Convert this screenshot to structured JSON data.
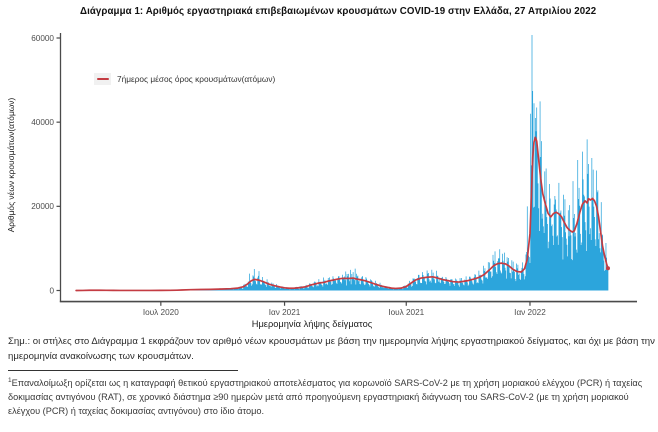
{
  "header": {
    "title": "Διάγραμμα 1: Αριθμός εργαστηριακά επιβεβαιωμένων κρουσμάτων COVID-19 στην Ελλάδα, 27 Απριλίου 2022"
  },
  "note": {
    "text": "Σημ.: οι στήλες στο Διάγραμμα 1 εκφράζουν τον αριθμό νέων κρουσμάτων με βάση την ημερομηνία λήψης εργαστηριακού δείγματος, και όχι με βάση την ημερομηνία ανακοίνωσης των κρουσμάτων."
  },
  "footnote": {
    "marker": "1",
    "text": "Επαναλοίμωξη ορίζεται ως η καταγραφή θετικού εργαστηριακού αποτελέσματος για κορωνοϊό SARS-CoV-2 με τη χρήση μοριακού ελέγχου (PCR) ή ταχείας δοκιμασίας αντιγόνου (RAT), σε χρονικό διάστημα ≥90 ημερών μετά από προηγούμενη εργαστηριακή διάγνωση του SARS-CoV-2 (με τη χρήση μοριακού ελέγχου (PCR) ή ταχείας δοκιμασίας αντιγόνου) στο ίδιο άτομο."
  },
  "chart_data": {
    "type": "bar",
    "description": "Daily laboratory-confirmed COVID-19 cases in Greece by sampling date (bars) with 7-day moving average (red line), late Feb 2020 to 27 Apr 2022",
    "legend": {
      "label": "7ήμερος μέσος όρος κρουσμάτων(ατόμων)",
      "position": "top-left"
    },
    "xlabel": "Ημερομηνία λήψης δείγματος",
    "ylabel": "Αριθμός νέων κρουσμάτων(ατόμων)",
    "grid": false,
    "ylim": [
      0,
      62000
    ],
    "y_ticks": [
      {
        "value": 0,
        "label": "0"
      },
      {
        "value": 20000,
        "label": "20000"
      },
      {
        "value": 40000,
        "label": "40000"
      },
      {
        "value": 60000,
        "label": "60000"
      }
    ],
    "x_epoch": "2020-02-01",
    "x_range_days": [
      25,
      816
    ],
    "x_ticks": [
      {
        "day": 151,
        "label": "Ιουλ 2020"
      },
      {
        "day": 335,
        "label": "Ιαν 2021"
      },
      {
        "day": 516,
        "label": "Ιουλ 2021"
      },
      {
        "day": 700,
        "label": "Ιαν 2022"
      }
    ],
    "avg_series_points": [
      [
        25,
        2
      ],
      [
        35,
        15
      ],
      [
        45,
        55
      ],
      [
        60,
        72
      ],
      [
        70,
        45
      ],
      [
        80,
        28
      ],
      [
        90,
        18
      ],
      [
        105,
        13
      ],
      [
        121,
        14
      ],
      [
        135,
        18
      ],
      [
        151,
        28
      ],
      [
        165,
        45
      ],
      [
        175,
        75
      ],
      [
        182,
        115
      ],
      [
        195,
        195
      ],
      [
        210,
        245
      ],
      [
        225,
        275
      ],
      [
        243,
        360
      ],
      [
        255,
        430
      ],
      [
        265,
        560
      ],
      [
        274,
        900
      ],
      [
        280,
        1550
      ],
      [
        285,
        2250
      ],
      [
        290,
        2650
      ],
      [
        296,
        2500
      ],
      [
        304,
        2050
      ],
      [
        312,
        1500
      ],
      [
        320,
        1150
      ],
      [
        328,
        850
      ],
      [
        335,
        640
      ],
      [
        342,
        530
      ],
      [
        350,
        570
      ],
      [
        358,
        690
      ],
      [
        366,
        870
      ],
      [
        375,
        1350
      ],
      [
        385,
        1750
      ],
      [
        394,
        1950
      ],
      [
        400,
        2250
      ],
      [
        408,
        2500
      ],
      [
        415,
        2750
      ],
      [
        422,
        2900
      ],
      [
        430,
        2870
      ],
      [
        437,
        2950
      ],
      [
        443,
        2700
      ],
      [
        450,
        2500
      ],
      [
        455,
        2300
      ],
      [
        463,
        1900
      ],
      [
        470,
        1500
      ],
      [
        478,
        1100
      ],
      [
        486,
        800
      ],
      [
        494,
        560
      ],
      [
        500,
        490
      ],
      [
        508,
        560
      ],
      [
        516,
        950
      ],
      [
        523,
        1750
      ],
      [
        530,
        2500
      ],
      [
        538,
        2950
      ],
      [
        547,
        3150
      ],
      [
        555,
        3250
      ],
      [
        562,
        3000
      ],
      [
        570,
        2600
      ],
      [
        578,
        2350
      ],
      [
        586,
        2100
      ],
      [
        594,
        2000
      ],
      [
        602,
        2200
      ],
      [
        608,
        2350
      ],
      [
        616,
        2700
      ],
      [
        624,
        3100
      ],
      [
        632,
        3800
      ],
      [
        639,
        4800
      ],
      [
        646,
        5900
      ],
      [
        652,
        6400
      ],
      [
        658,
        6500
      ],
      [
        664,
        6300
      ],
      [
        669,
        5800
      ],
      [
        675,
        5000
      ],
      [
        681,
        4500
      ],
      [
        687,
        4400
      ],
      [
        692,
        5200
      ],
      [
        696,
        7500
      ],
      [
        700,
        13500
      ],
      [
        702,
        22000
      ],
      [
        704,
        31500
      ],
      [
        706,
        35300
      ],
      [
        708,
        36400
      ],
      [
        710,
        35500
      ],
      [
        713,
        31000
      ],
      [
        716,
        26500
      ],
      [
        719,
        23000
      ],
      [
        723,
        20500
      ],
      [
        727,
        18300
      ],
      [
        731,
        17500
      ],
      [
        735,
        18300
      ],
      [
        739,
        18600
      ],
      [
        743,
        18200
      ],
      [
        747,
        17500
      ],
      [
        751,
        16200
      ],
      [
        755,
        15000
      ],
      [
        759,
        14300
      ],
      [
        763,
        13900
      ],
      [
        766,
        14200
      ],
      [
        770,
        16000
      ],
      [
        774,
        18500
      ],
      [
        778,
        20500
      ],
      [
        782,
        21300
      ],
      [
        785,
        20800
      ],
      [
        787,
        21800
      ],
      [
        790,
        21500
      ],
      [
        793,
        21900
      ],
      [
        796,
        21300
      ],
      [
        799,
        20000
      ],
      [
        802,
        17500
      ],
      [
        805,
        14000
      ],
      [
        808,
        10500
      ],
      [
        811,
        8200
      ],
      [
        814,
        6300
      ],
      [
        816,
        5300
      ]
    ],
    "bar_weekly_pattern": [
      0.55,
      1.35,
      1.15,
      1.25,
      0.95,
      0.8,
      0.65
    ],
    "bar_overrides": {
      "283": 4000,
      "290": 5100,
      "297": 4600,
      "426": 4500,
      "433": 4900,
      "440": 5200,
      "648": 9300,
      "655": 9800,
      "662": 9000,
      "696": 20000,
      "701": 42000,
      "703": 60700,
      "704": 47400,
      "706": 44500,
      "708": 41000,
      "710": 43500,
      "717": 35500,
      "724": 29000,
      "764": 26000,
      "771": 31000,
      "778": 33000,
      "785": 35900,
      "792": 31500,
      "799": 28500,
      "806": 21000,
      "813": 11300
    },
    "max_daily_bar": 60700,
    "avg_peak": 36400,
    "colors": {
      "bars": "#2CA5DC",
      "avg_line": "#C43C43",
      "axis": "#4a4a4a",
      "tick_text": "#4d4d4d",
      "axis_title_text": "#222222",
      "legend_key_bg": "#f1f1f1"
    }
  }
}
